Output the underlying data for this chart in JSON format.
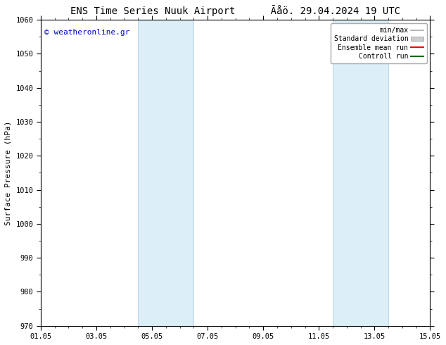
{
  "title_left": "ENS Time Series Nuuk Airport",
  "title_right": "Āåö. 29.04.2024 19 UTC",
  "ylabel": "Surface Pressure (hPa)",
  "ylim": [
    970,
    1060
  ],
  "yticks": [
    970,
    980,
    990,
    1000,
    1010,
    1020,
    1030,
    1040,
    1050,
    1060
  ],
  "xlabel_dates": [
    "01.05",
    "03.05",
    "05.05",
    "07.05",
    "09.05",
    "11.05",
    "13.05",
    "15.05"
  ],
  "xtick_positions": [
    0,
    2,
    4,
    6,
    8,
    10,
    12,
    14
  ],
  "xlim": [
    0,
    14
  ],
  "shaded_bands": [
    {
      "xstart": 3.5,
      "xend": 5.5
    },
    {
      "xstart": 10.5,
      "xend": 12.5
    }
  ],
  "shaded_color": "#dceef8",
  "shaded_edge_color": "#b0d0e8",
  "background_color": "#ffffff",
  "watermark_text": "© weatheronline.gr",
  "watermark_color": "#0000cc",
  "legend_items": [
    {
      "label": "min/max",
      "color": "#aaaaaa",
      "lw": 1.2,
      "type": "line"
    },
    {
      "label": "Standard deviation",
      "color": "#cccccc",
      "lw": 8,
      "type": "patch"
    },
    {
      "label": "Ensemble mean run",
      "color": "#ff0000",
      "lw": 1.5,
      "type": "line"
    },
    {
      "label": "Controll run",
      "color": "#006600",
      "lw": 1.5,
      "type": "line"
    }
  ],
  "title_fontsize": 10,
  "tick_fontsize": 7.5,
  "label_fontsize": 8,
  "watermark_fontsize": 8,
  "legend_fontsize": 7,
  "fig_width": 6.34,
  "fig_height": 4.9,
  "dpi": 100
}
